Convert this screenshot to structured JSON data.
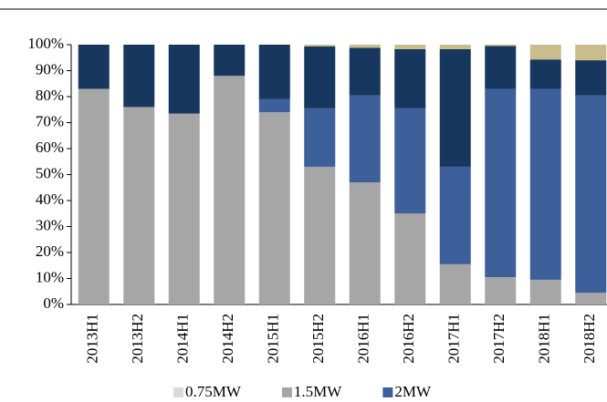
{
  "chart_data": {
    "type": "stacked_bar",
    "categories": [
      "2013H1",
      "2013H2",
      "2014H1",
      "2014H2",
      "2015H1",
      "2015H2",
      "2016H1",
      "2016H2",
      "2017H1",
      "2017H2",
      "2018H1",
      "2018H2"
    ],
    "series": [
      {
        "name": "0.75MW",
        "color": "#d9d9d9",
        "values": [
          0,
          0,
          0,
          0,
          0,
          0,
          0,
          0,
          0,
          0,
          0,
          0
        ]
      },
      {
        "name": "1.5MW",
        "color": "#a6a6a6",
        "values": [
          83,
          76,
          73.5,
          88,
          74,
          53,
          47,
          35,
          15.5,
          10.5,
          9.5,
          4.5
        ]
      },
      {
        "name": "2MW",
        "color": "#3d5f9a",
        "values": [
          0,
          0,
          0,
          0,
          5,
          22.5,
          33.5,
          40.5,
          37.5,
          72.5,
          73.5,
          76
        ]
      },
      {
        "color": "#17375e",
        "values": [
          17,
          24,
          26.5,
          12,
          21,
          23.8,
          18.3,
          22.8,
          45.3,
          16.5,
          11.3,
          13.5
        ]
      },
      {
        "color": "#c9bd8e",
        "values": [
          0,
          0,
          0,
          0,
          0,
          0.7,
          1.2,
          1.7,
          1.7,
          0.5,
          5.7,
          6
        ]
      }
    ],
    "ylim": [
      0,
      100
    ],
    "yticks": [
      {
        "value": 0,
        "label": "0%"
      },
      {
        "value": 10,
        "label": "10%"
      },
      {
        "value": 20,
        "label": "20%"
      },
      {
        "value": 30,
        "label": "30%"
      },
      {
        "value": 40,
        "label": "40%"
      },
      {
        "value": 50,
        "label": "50%"
      },
      {
        "value": 60,
        "label": "60%"
      },
      {
        "value": 70,
        "label": "70%"
      },
      {
        "value": 80,
        "label": "80%"
      },
      {
        "value": 90,
        "label": "90%"
      },
      {
        "value": 100,
        "label": "100%"
      }
    ]
  }
}
